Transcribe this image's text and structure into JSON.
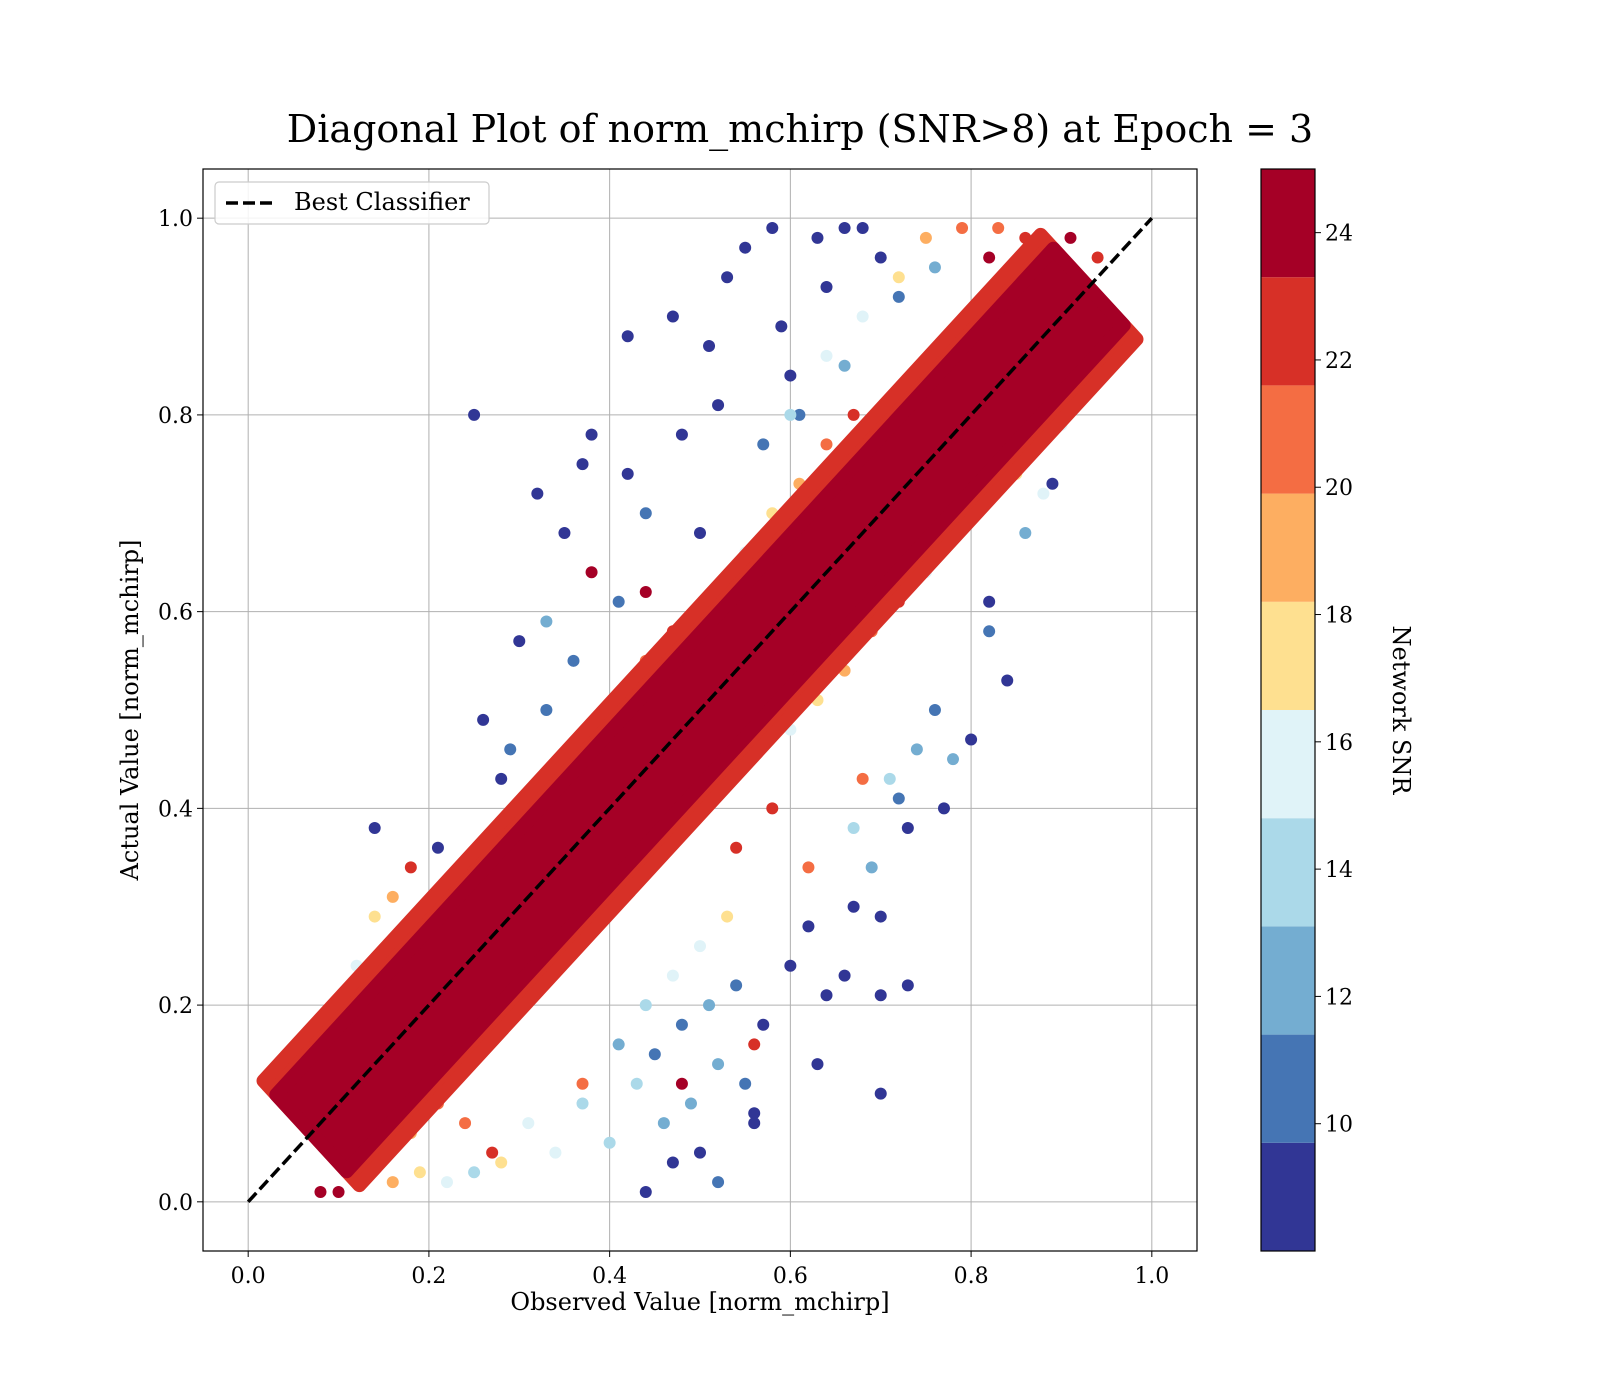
{
  "chart_data": {
    "type": "scatter",
    "title": "Diagonal Plot of norm_mchirp (SNR>8) at Epoch = 3",
    "xlabel": "Observed Value [norm_mchirp]",
    "ylabel": "Actual Value [norm_mchirp]",
    "xlim": [
      -0.05,
      1.05
    ],
    "ylim": [
      -0.05,
      1.05
    ],
    "x_ticks": [
      "0.0",
      "0.2",
      "0.4",
      "0.6",
      "0.8",
      "1.0"
    ],
    "y_ticks": [
      "0.0",
      "0.2",
      "0.4",
      "0.6",
      "0.8",
      "1.0"
    ],
    "grid": true,
    "legend": {
      "placement": "top-left",
      "entries": [
        "Best Classifier"
      ]
    },
    "reference_line": {
      "name": "Best Classifier",
      "style": "dashed",
      "color": "#000000",
      "x": [
        0.0,
        1.0
      ],
      "y": [
        0.0,
        1.0
      ]
    },
    "colorbar": {
      "label": "Network SNR",
      "range": [
        8,
        25
      ],
      "tick_values": [
        10,
        12,
        14,
        16,
        18,
        20,
        22,
        24
      ],
      "tick_labels": [
        "10",
        "12",
        "14",
        "16",
        "18",
        "20",
        "22",
        "24"
      ],
      "bins": [
        8.0,
        9.7,
        11.4,
        13.1,
        14.8,
        16.5,
        18.2,
        19.9,
        21.6,
        23.3,
        25.0
      ],
      "colors": [
        "#313695",
        "#4575b4",
        "#74add1",
        "#abd9e9",
        "#e0f3f8",
        "#fee090",
        "#fdae61",
        "#f46d43",
        "#d73027",
        "#a50026"
      ]
    },
    "points": [
      [
        0.25,
        0.8,
        8.5
      ],
      [
        0.38,
        0.78,
        8.6
      ],
      [
        0.37,
        0.75,
        8.5
      ],
      [
        0.32,
        0.72,
        8.6
      ],
      [
        0.35,
        0.68,
        8.5
      ],
      [
        0.55,
        0.97,
        8.5
      ],
      [
        0.53,
        0.94,
        8.6
      ],
      [
        0.58,
        0.99,
        8.5
      ],
      [
        0.66,
        0.99,
        8.6
      ],
      [
        0.68,
        0.99,
        8.5
      ],
      [
        0.63,
        0.98,
        8.8
      ],
      [
        0.42,
        0.88,
        8.5
      ],
      [
        0.47,
        0.9,
        8.6
      ],
      [
        0.51,
        0.87,
        8.5
      ],
      [
        0.59,
        0.89,
        9.0
      ],
      [
        0.3,
        0.57,
        8.5
      ],
      [
        0.26,
        0.49,
        8.6
      ],
      [
        0.21,
        0.36,
        8.5
      ],
      [
        0.14,
        0.38,
        8.6
      ],
      [
        0.28,
        0.43,
        8.5
      ],
      [
        0.38,
        0.36,
        8.7
      ],
      [
        0.45,
        0.42,
        9.0
      ],
      [
        0.5,
        0.68,
        8.8
      ],
      [
        0.56,
        0.64,
        9.2
      ],
      [
        0.6,
        0.84,
        9.0
      ],
      [
        0.64,
        0.93,
        9.2
      ],
      [
        0.7,
        0.96,
        9.5
      ],
      [
        0.72,
        0.92,
        10.5
      ],
      [
        0.76,
        0.95,
        12.0
      ],
      [
        0.48,
        0.78,
        9.5
      ],
      [
        0.44,
        0.7,
        9.8
      ],
      [
        0.41,
        0.61,
        10.2
      ],
      [
        0.36,
        0.55,
        10.5
      ],
      [
        0.33,
        0.5,
        10.0
      ],
      [
        0.29,
        0.46,
        11.0
      ],
      [
        0.42,
        0.74,
        9.2
      ],
      [
        0.52,
        0.81,
        9.4
      ],
      [
        0.57,
        0.77,
        10.0
      ],
      [
        0.61,
        0.8,
        11.0
      ],
      [
        0.66,
        0.85,
        11.5
      ],
      [
        0.7,
        0.21,
        8.6
      ],
      [
        0.73,
        0.22,
        8.5
      ],
      [
        0.7,
        0.11,
        8.6
      ],
      [
        0.63,
        0.14,
        9.5
      ],
      [
        0.56,
        0.08,
        8.6
      ],
      [
        0.56,
        0.09,
        8.5
      ],
      [
        0.5,
        0.05,
        8.8
      ],
      [
        0.44,
        0.01,
        8.6
      ],
      [
        0.47,
        0.04,
        9.0
      ],
      [
        0.52,
        0.02,
        10.0
      ],
      [
        0.64,
        0.21,
        8.6
      ],
      [
        0.6,
        0.24,
        9.0
      ],
      [
        0.66,
        0.23,
        8.7
      ],
      [
        0.62,
        0.28,
        8.8
      ],
      [
        0.7,
        0.29,
        8.6
      ],
      [
        0.84,
        0.53,
        8.6
      ],
      [
        0.82,
        0.61,
        8.5
      ],
      [
        0.8,
        0.47,
        9.4
      ],
      [
        0.77,
        0.4,
        8.7
      ],
      [
        0.73,
        0.38,
        8.6
      ],
      [
        0.67,
        0.3,
        9.5
      ],
      [
        0.69,
        0.34,
        12.0
      ],
      [
        0.72,
        0.41,
        10.0
      ],
      [
        0.78,
        0.45,
        11.5
      ],
      [
        0.86,
        0.68,
        12.5
      ],
      [
        0.82,
        0.58,
        10.5
      ],
      [
        0.76,
        0.5,
        11.0
      ],
      [
        0.74,
        0.46,
        12.5
      ],
      [
        0.71,
        0.43,
        13.5
      ],
      [
        0.67,
        0.38,
        14.0
      ],
      [
        0.55,
        0.12,
        10.5
      ],
      [
        0.52,
        0.14,
        11.5
      ],
      [
        0.49,
        0.1,
        12.0
      ],
      [
        0.46,
        0.08,
        12.8
      ],
      [
        0.43,
        0.12,
        13.5
      ],
      [
        0.4,
        0.06,
        14.0
      ],
      [
        0.37,
        0.1,
        14.5
      ],
      [
        0.34,
        0.05,
        15.0
      ],
      [
        0.31,
        0.08,
        16.0
      ],
      [
        0.28,
        0.04,
        17.0
      ],
      [
        0.45,
        0.15,
        10.0
      ],
      [
        0.48,
        0.18,
        11.0
      ],
      [
        0.51,
        0.2,
        12.0
      ],
      [
        0.54,
        0.22,
        10.5
      ],
      [
        0.57,
        0.18,
        9.5
      ],
      [
        0.41,
        0.16,
        13.0
      ],
      [
        0.44,
        0.2,
        14.0
      ],
      [
        0.47,
        0.23,
        15.0
      ],
      [
        0.5,
        0.26,
        16.5
      ],
      [
        0.53,
        0.29,
        17.5
      ],
      [
        0.88,
        0.72,
        16.0
      ],
      [
        0.87,
        0.78,
        18.5
      ],
      [
        0.85,
        0.74,
        17.0
      ],
      [
        0.9,
        0.79,
        15.5
      ],
      [
        0.89,
        0.85,
        19.0
      ],
      [
        0.91,
        0.86,
        20.5
      ],
      [
        0.92,
        0.89,
        21.5
      ],
      [
        0.93,
        0.93,
        22.0
      ],
      [
        0.94,
        0.96,
        23.0
      ],
      [
        0.91,
        0.98,
        24.0
      ],
      [
        0.6,
        0.8,
        14.0
      ],
      [
        0.64,
        0.86,
        15.0
      ],
      [
        0.68,
        0.9,
        16.5
      ],
      [
        0.72,
        0.94,
        17.5
      ],
      [
        0.75,
        0.98,
        19.0
      ],
      [
        0.79,
        0.99,
        20.0
      ],
      [
        0.83,
        0.99,
        21.0
      ],
      [
        0.86,
        0.98,
        22.5
      ],
      [
        0.88,
        0.97,
        24.0
      ],
      [
        0.82,
        0.96,
        24.5
      ],
      [
        0.1,
        0.18,
        18.0
      ],
      [
        0.12,
        0.24,
        16.0
      ],
      [
        0.14,
        0.29,
        17.0
      ],
      [
        0.16,
        0.31,
        19.0
      ],
      [
        0.18,
        0.34,
        22.0
      ],
      [
        0.08,
        0.12,
        19.5
      ],
      [
        0.07,
        0.08,
        21.0
      ],
      [
        0.09,
        0.05,
        22.0
      ],
      [
        0.08,
        0.01,
        23.5
      ],
      [
        0.1,
        0.01,
        24.5
      ],
      [
        0.13,
        0.03,
        20.0
      ],
      [
        0.16,
        0.02,
        18.5
      ],
      [
        0.19,
        0.03,
        17.0
      ],
      [
        0.22,
        0.02,
        16.0
      ],
      [
        0.25,
        0.03,
        14.5
      ],
      [
        0.27,
        0.05,
        22.0
      ],
      [
        0.24,
        0.08,
        21.0
      ],
      [
        0.21,
        0.1,
        20.0
      ],
      [
        0.18,
        0.07,
        19.0
      ],
      [
        0.15,
        0.05,
        21.5
      ],
      [
        0.4,
        0.3,
        13.0
      ],
      [
        0.43,
        0.33,
        15.5
      ],
      [
        0.46,
        0.36,
        17.0
      ],
      [
        0.49,
        0.39,
        19.5
      ],
      [
        0.52,
        0.42,
        21.0
      ],
      [
        0.35,
        0.44,
        14.0
      ],
      [
        0.38,
        0.48,
        16.0
      ],
      [
        0.41,
        0.51,
        18.0
      ],
      [
        0.44,
        0.55,
        20.0
      ],
      [
        0.47,
        0.58,
        22.5
      ],
      [
        0.55,
        0.66,
        15.0
      ],
      [
        0.58,
        0.7,
        17.5
      ],
      [
        0.61,
        0.73,
        19.5
      ],
      [
        0.64,
        0.77,
        21.5
      ],
      [
        0.67,
        0.8,
        23.0
      ],
      [
        0.6,
        0.48,
        15.5
      ],
      [
        0.63,
        0.51,
        17.0
      ],
      [
        0.66,
        0.54,
        18.5
      ],
      [
        0.69,
        0.58,
        20.0
      ],
      [
        0.72,
        0.61,
        22.0
      ],
      [
        0.75,
        0.64,
        16.5
      ],
      [
        0.78,
        0.68,
        18.0
      ],
      [
        0.81,
        0.71,
        20.5
      ],
      [
        0.84,
        0.75,
        22.0
      ],
      [
        0.86,
        0.79,
        23.5
      ],
      [
        0.89,
        0.73,
        8.6
      ],
      [
        0.84,
        0.87,
        24.0
      ],
      [
        0.85,
        0.81,
        24.5
      ],
      [
        0.26,
        0.23,
        24.0
      ],
      [
        0.3,
        0.34,
        24.5
      ],
      [
        0.44,
        0.62,
        24.5
      ],
      [
        0.56,
        0.16,
        22.5
      ],
      [
        0.48,
        0.12,
        24.5
      ],
      [
        0.38,
        0.64,
        24.0
      ],
      [
        0.31,
        0.39,
        23.5
      ],
      [
        0.37,
        0.12,
        20.5
      ],
      [
        0.62,
        0.34,
        21.0
      ],
      [
        0.58,
        0.4,
        23.0
      ],
      [
        0.54,
        0.36,
        22.0
      ],
      [
        0.68,
        0.43,
        20.5
      ],
      [
        0.33,
        0.59,
        13.0
      ],
      [
        0.29,
        0.33,
        20.0
      ],
      [
        0.23,
        0.27,
        21.5
      ],
      [
        0.2,
        0.22,
        23.0
      ],
      [
        0.17,
        0.13,
        24.0
      ]
    ]
  }
}
